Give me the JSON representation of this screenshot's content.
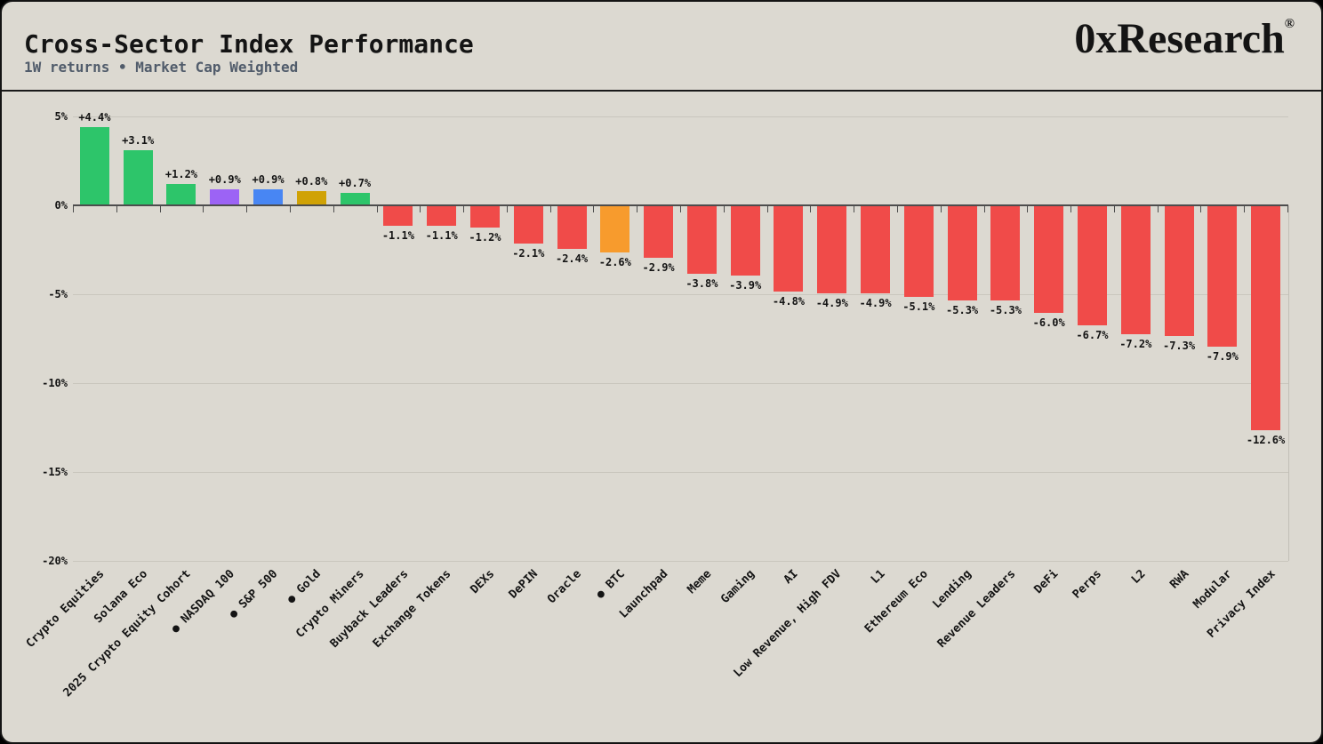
{
  "header": {
    "title": "Cross-Sector Index Performance",
    "subtitle": "1W returns • Market Cap Weighted",
    "logo": "0xResearch",
    "logo_reg": "®"
  },
  "colors": {
    "background": "#dcd9d1",
    "border": "#141414",
    "title_text": "#141414",
    "subtitle_text": "#515c6b",
    "grid": "#c9c6bd",
    "axis": "#4d4d4d",
    "label_text": "#141414",
    "green": "#2dc56a",
    "red": "#f04b49",
    "purple": "#9c63f5",
    "blue": "#4886f3",
    "gold": "#d0a205",
    "orange": "#f79b2d"
  },
  "chart_data": {
    "type": "bar",
    "title": "Cross-Sector Index Performance",
    "subtitle": "1W returns • Market Cap Weighted",
    "xlabel": "",
    "ylabel": "",
    "y_unit": "%",
    "ylim": [
      -20,
      5
    ],
    "grid": true,
    "legend": "none",
    "x_tick_style": "rotated-45",
    "y_ticks": [
      "5%",
      "0%",
      "-5%",
      "-10%",
      "-15%",
      "-20%"
    ],
    "y_tick_values": [
      5,
      0,
      -5,
      -10,
      -15,
      -20
    ],
    "categories": [
      "Crypto Equities",
      "Solana Eco",
      "2025 Crypto Equity Cohort",
      "● NASDAQ 100",
      "● S&P 500",
      "● Gold",
      "Crypto Miners",
      "Buyback Leaders",
      "Exchange Tokens",
      "DEXs",
      "DePIN",
      "Oracle",
      "● BTC",
      "Launchpad",
      "Meme",
      "Gaming",
      "AI",
      "Low Revenue, High FDV",
      "L1",
      "Ethereum Eco",
      "Lending",
      "Revenue Leaders",
      "DeFi",
      "Perps",
      "L2",
      "RWA",
      "Modular",
      "Privacy Index"
    ],
    "values": [
      4.4,
      3.1,
      1.2,
      0.9,
      0.9,
      0.8,
      0.7,
      -1.1,
      -1.1,
      -1.2,
      -2.1,
      -2.4,
      -2.6,
      -2.9,
      -3.8,
      -3.9,
      -4.8,
      -4.9,
      -4.9,
      -5.1,
      -5.3,
      -5.3,
      -6.0,
      -6.7,
      -7.2,
      -7.3,
      -7.9,
      -12.6
    ],
    "value_labels": [
      "+4.4%",
      "+3.1%",
      "+1.2%",
      "+0.9%",
      "+0.9%",
      "+0.8%",
      "+0.7%",
      "-1.1%",
      "-1.1%",
      "-1.2%",
      "-2.1%",
      "-2.4%",
      "-2.6%",
      "-2.9%",
      "-3.8%",
      "-3.9%",
      "-4.8%",
      "-4.9%",
      "-4.9%",
      "-5.1%",
      "-5.3%",
      "-5.3%",
      "-6.0%",
      "-6.7%",
      "-7.2%",
      "-7.3%",
      "-7.9%",
      "-12.6%"
    ],
    "bar_colors": [
      "#2dc56a",
      "#2dc56a",
      "#2dc56a",
      "#9c63f5",
      "#4886f3",
      "#d0a205",
      "#2dc56a",
      "#f04b49",
      "#f04b49",
      "#f04b49",
      "#f04b49",
      "#f04b49",
      "#f79b2d",
      "#f04b49",
      "#f04b49",
      "#f04b49",
      "#f04b49",
      "#f04b49",
      "#f04b49",
      "#f04b49",
      "#f04b49",
      "#f04b49",
      "#f04b49",
      "#f04b49",
      "#f04b49",
      "#f04b49",
      "#f04b49",
      "#f04b49"
    ]
  }
}
